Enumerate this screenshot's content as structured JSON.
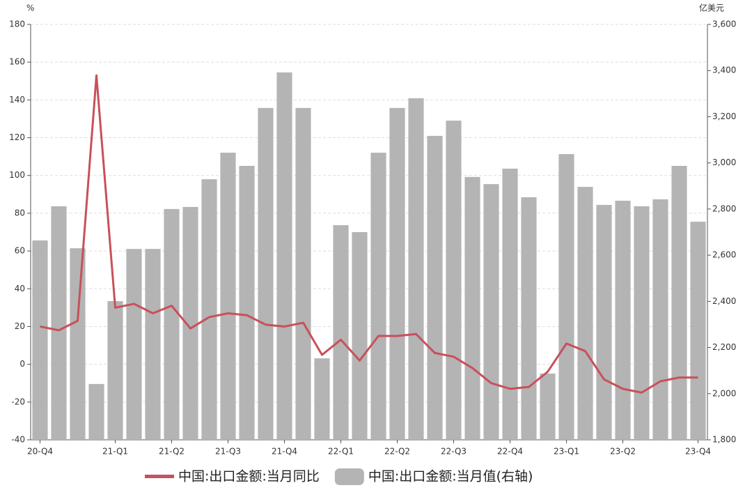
{
  "chart_data": {
    "type": "bar-line",
    "y_unit": "%",
    "y2_unit": "亿美元",
    "categories": [
      "20-Q4",
      null,
      null,
      null,
      "21-Q1",
      null,
      null,
      "21-Q2",
      null,
      null,
      "21-Q3",
      null,
      null,
      "21-Q4",
      null,
      null,
      "22-Q1",
      null,
      null,
      "22-Q2",
      null,
      null,
      "22-Q3",
      null,
      null,
      "22-Q4",
      null,
      null,
      "23-Q1",
      null,
      null,
      "23-Q2",
      null,
      null,
      null,
      "23-Q4"
    ],
    "series": [
      {
        "name": "中国:出口金额:当月同比",
        "kind": "line",
        "color": "#c8505a",
        "axis": "y",
        "values": [
          20,
          18,
          23,
          153,
          30,
          32,
          27,
          31,
          19,
          25,
          27,
          26,
          21,
          20,
          22,
          5,
          13,
          2,
          15,
          15,
          16,
          6,
          4,
          -2,
          -10,
          -13,
          -12,
          -4,
          11,
          7,
          -8,
          -13,
          -15,
          -9,
          -7,
          -7
        ]
      },
      {
        "name": "中国:出口金额:当月值(右轴)",
        "kind": "bar",
        "color": "#b4b4b4",
        "axis": "y2",
        "values": [
          2664,
          2812,
          2630,
          2042,
          2401,
          2627,
          2627,
          2800,
          2809,
          2929,
          3044,
          2987,
          3238,
          3392,
          3238,
          2153,
          2730,
          2700,
          3044,
          3238,
          3280,
          3117,
          3183,
          2939,
          2908,
          2975,
          2851,
          2087,
          3038,
          2896,
          2818,
          2836,
          2812,
          2842,
          2987,
          2745
        ]
      }
    ],
    "ylim": [
      -40,
      180
    ],
    "yticks": [
      -40,
      -20,
      0,
      20,
      40,
      60,
      80,
      100,
      120,
      140,
      160,
      180
    ],
    "y2lim": [
      1800,
      3600
    ],
    "y2ticks": [
      {
        "value": 1800,
        "label": "1,800"
      },
      {
        "value": 2000,
        "label": "2,000"
      },
      {
        "value": 2200,
        "label": "2,200"
      },
      {
        "value": 2400,
        "label": "2,400"
      },
      {
        "value": 2600,
        "label": "2,600"
      },
      {
        "value": 2800,
        "label": "2,800"
      },
      {
        "value": 3000,
        "label": "3,000"
      },
      {
        "value": 3200,
        "label": "3,200"
      },
      {
        "value": 3400,
        "label": "3,400"
      },
      {
        "value": 3600,
        "label": "3,600"
      }
    ],
    "grid": true,
    "legend": "bottom"
  }
}
